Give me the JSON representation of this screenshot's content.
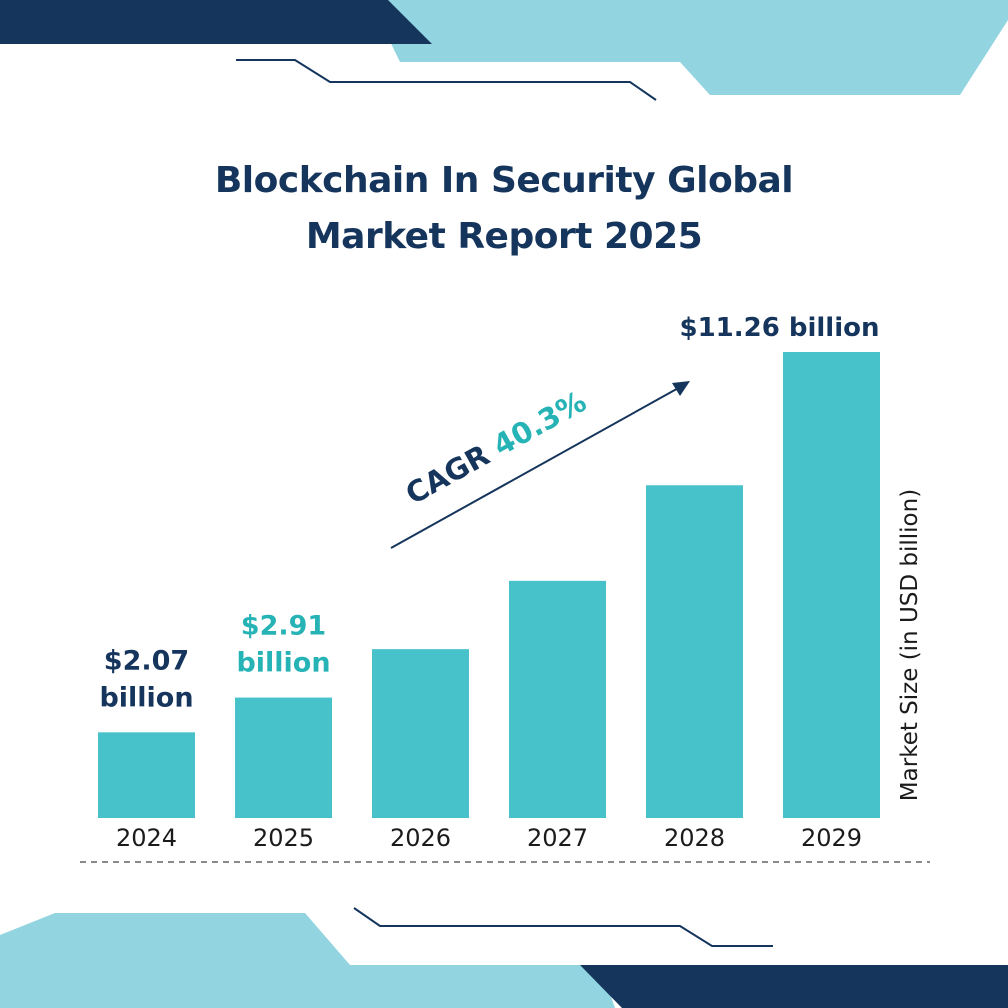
{
  "title_line1": "Blockchain In Security Global",
  "title_line2": "Market Report 2025",
  "colors": {
    "navy": "#15355c",
    "teal_bar": "#47c2ca",
    "teal_text": "#26b3b5",
    "light_blue": "#92d4e0",
    "dark_text": "#1b1b1b"
  },
  "chart_data": {
    "type": "bar",
    "categories": [
      "2024",
      "2025",
      "2026",
      "2027",
      "2028",
      "2029"
    ],
    "values": [
      2.07,
      2.91,
      4.08,
      5.73,
      8.04,
      11.26
    ],
    "ylabel": "Market Size (in USD billion)",
    "data_labels": [
      {
        "index": 0,
        "line1": "$2.07",
        "line2": "billion",
        "color": "#15355c"
      },
      {
        "index": 1,
        "line1": "$2.91",
        "line2": "billion",
        "color": "#26b3b5"
      },
      {
        "index": 5,
        "line1": "$11.26 billion",
        "line2": "",
        "color": "#15355c"
      }
    ],
    "annotation": {
      "label": "CAGR",
      "value": "40.3%"
    }
  }
}
